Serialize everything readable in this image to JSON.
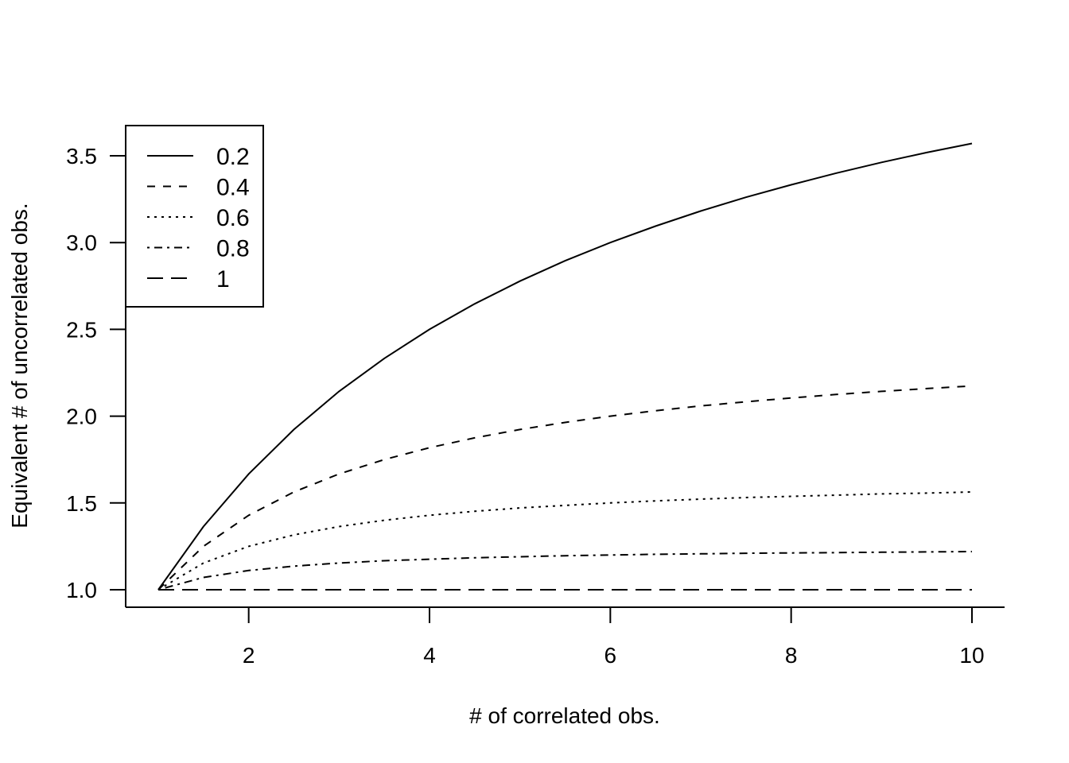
{
  "chart_data": {
    "type": "line",
    "title": "",
    "xlabel": "# of correlated obs.",
    "ylabel": "Equivalent # of uncorrelated obs.",
    "xlim": [
      1,
      10
    ],
    "ylim": [
      1,
      3.6
    ],
    "x_ticks": [
      2,
      4,
      6,
      8,
      10
    ],
    "y_ticks": [
      1.0,
      1.5,
      2.0,
      2.5,
      3.0,
      3.5
    ],
    "y_tick_labels": [
      "1.0",
      "1.5",
      "2.0",
      "2.5",
      "3.0",
      "3.5"
    ],
    "x": [
      1,
      1.5,
      2,
      2.5,
      3,
      3.5,
      4,
      4.5,
      5,
      5.5,
      6,
      6.5,
      7,
      7.5,
      8,
      8.5,
      9,
      9.5,
      10
    ],
    "legend_position": "top-left",
    "grid": false,
    "series": [
      {
        "name": "0.2",
        "dash": "solid",
        "values": [
          1.0,
          1.364,
          1.667,
          1.923,
          2.143,
          2.333,
          2.5,
          2.647,
          2.778,
          2.895,
          3.0,
          3.095,
          3.182,
          3.261,
          3.333,
          3.4,
          3.462,
          3.519,
          3.571
        ]
      },
      {
        "name": "0.4",
        "dash": "dashed",
        "values": [
          1.0,
          1.25,
          1.429,
          1.563,
          1.667,
          1.75,
          1.818,
          1.875,
          1.923,
          1.964,
          2.0,
          2.031,
          2.059,
          2.083,
          2.105,
          2.125,
          2.143,
          2.159,
          2.174
        ]
      },
      {
        "name": "0.6",
        "dash": "dotted",
        "values": [
          1.0,
          1.154,
          1.25,
          1.316,
          1.364,
          1.4,
          1.429,
          1.452,
          1.471,
          1.486,
          1.5,
          1.512,
          1.522,
          1.531,
          1.538,
          1.545,
          1.552,
          1.557,
          1.563
        ]
      },
      {
        "name": "0.8",
        "dash": "dotdash",
        "values": [
          1.0,
          1.071,
          1.111,
          1.136,
          1.154,
          1.167,
          1.176,
          1.184,
          1.19,
          1.196,
          1.2,
          1.204,
          1.207,
          1.21,
          1.212,
          1.214,
          1.216,
          1.218,
          1.22
        ]
      },
      {
        "name": "1",
        "dash": "longdash",
        "values": [
          1,
          1,
          1,
          1,
          1,
          1,
          1,
          1,
          1,
          1,
          1,
          1,
          1,
          1,
          1,
          1,
          1,
          1,
          1
        ]
      }
    ]
  }
}
